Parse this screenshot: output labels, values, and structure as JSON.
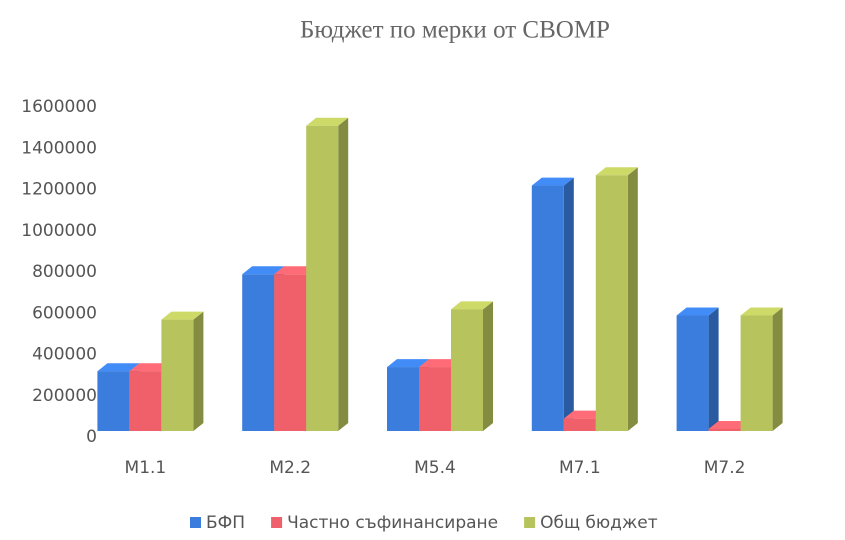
{
  "chart_data": {
    "type": "bar3d",
    "title": "Бюджет по мерки от СВОМР",
    "categories": [
      "M1.1",
      "M2.2",
      "M5.4",
      "M7.1",
      "M7.2"
    ],
    "series": [
      {
        "name": "БФП",
        "color": "#3b7ddd",
        "values": [
          290000,
          760000,
          310000,
          1190000,
          560000
        ]
      },
      {
        "name": "Частно съфинансиране",
        "color": "#f0606a",
        "values": [
          290000,
          760000,
          310000,
          60000,
          10000
        ]
      },
      {
        "name": "Общ бюджет",
        "color": "#b7c35c",
        "values": [
          540000,
          1480000,
          590000,
          1240000,
          560000
        ]
      }
    ],
    "ylim": [
      0,
      1600000
    ],
    "yticks": [
      0,
      200000,
      400000,
      600000,
      800000,
      1000000,
      1200000,
      1400000,
      1600000
    ],
    "legend": "bottom"
  }
}
